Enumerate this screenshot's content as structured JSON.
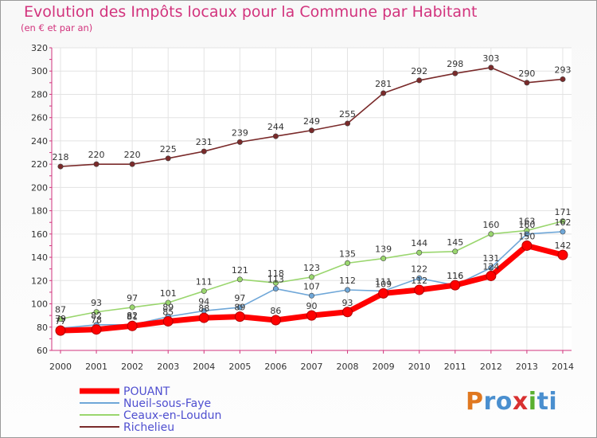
{
  "title": "Evolution des Impôts locaux pour la Commune par Habitant",
  "subtitle": "(en € et par an)",
  "logo": {
    "text": "Proxiti",
    "parts": [
      "P",
      "ro",
      "x",
      "i",
      "ti"
    ]
  },
  "chart_data": {
    "type": "line",
    "title": "Evolution des Impôts locaux pour la Commune par Habitant",
    "subtitle": "(en € et par an)",
    "xlabel": "",
    "ylabel": "",
    "ylim": [
      60,
      320
    ],
    "yticks": [
      60,
      80,
      100,
      120,
      140,
      160,
      180,
      200,
      220,
      240,
      260,
      280,
      300,
      320
    ],
    "grid": true,
    "legend_position": "bottom-left",
    "categories": [
      "2000",
      "2001",
      "2002",
      "2003",
      "2004",
      "2005",
      "2006",
      "2007",
      "2008",
      "2009",
      "2010",
      "2011",
      "2012",
      "2013",
      "2014"
    ],
    "series": [
      {
        "name": "POUANT",
        "color": "#ff0000",
        "values": [
          77,
          78,
          81,
          85,
          88,
          89,
          86,
          90,
          93,
          109,
          112,
          116,
          124,
          150,
          142
        ]
      },
      {
        "name": "Nueil-sous-Faye",
        "color": "#6fa7d8",
        "values": [
          79,
          82,
          82,
          89,
          94,
          97,
          113,
          107,
          112,
          111,
          122,
          116,
          131,
          160,
          162
        ]
      },
      {
        "name": "Ceaux-en-Loudun",
        "color": "#9ad66e",
        "values": [
          87,
          93,
          97,
          101,
          111,
          121,
          118,
          123,
          135,
          139,
          144,
          145,
          160,
          163,
          171
        ]
      },
      {
        "name": "Richelieu",
        "color": "#7a2a2a",
        "values": [
          218,
          220,
          220,
          225,
          231,
          239,
          244,
          249,
          255,
          281,
          292,
          298,
          303,
          290,
          293
        ]
      }
    ],
    "data_labels": [
      {
        "series": "POUANT",
        "values": [
          "77",
          "78",
          "81",
          "85",
          "88",
          "89",
          "86",
          "90",
          "93",
          "109",
          "112",
          "116",
          "124",
          "150",
          "142"
        ]
      },
      {
        "series": "Nueil-sous-Faye",
        "values": [
          "79",
          "82",
          "82",
          "89",
          "94",
          "97",
          "113",
          "107",
          "112",
          "111",
          "122",
          "116",
          "131",
          "160",
          "162"
        ]
      },
      {
        "series": "Ceaux-en-Loudun",
        "values": [
          "87",
          "93",
          "97",
          "101",
          "111",
          "121",
          "118",
          "123",
          "135",
          "139",
          "144",
          "145",
          "160",
          "163",
          "171"
        ]
      },
      {
        "series": "Richelieu",
        "values": [
          "218",
          "220",
          "220",
          "225",
          "231",
          "239",
          "244",
          "249",
          "255",
          "281",
          "292",
          "298",
          "303",
          "290",
          "293"
        ]
      }
    ]
  }
}
